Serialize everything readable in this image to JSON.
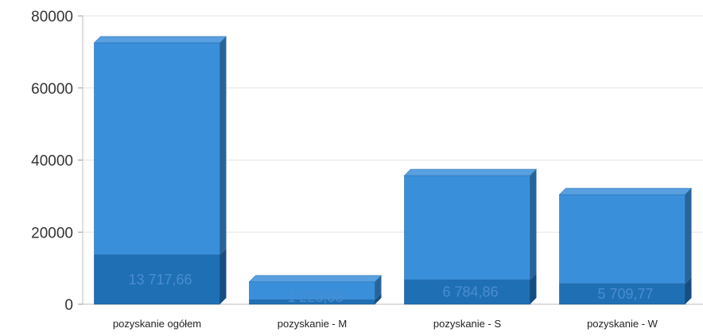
{
  "chart_data": {
    "type": "bar",
    "stacked": true,
    "three_d": true,
    "categories": [
      "pozyskanie ogółem",
      "pozyskanie - M",
      "pozyskanie - S",
      "pozyskanie - W"
    ],
    "series": [
      {
        "values": [
          13717.66,
          1223.03,
          6784.86,
          5709.77
        ],
        "labels": [
          "13 717,66",
          "1 223,03",
          "6 784,86",
          "5 709,77"
        ],
        "color": "#1f6fb5"
      },
      {
        "values": [
          58800,
          5000,
          28900,
          24700
        ],
        "color": "#3a8fdb"
      }
    ],
    "y_ticks": [
      "0",
      "20000",
      "40000",
      "60000",
      "80000"
    ],
    "ylim": [
      0,
      80000
    ],
    "grid": true,
    "legend": "none"
  }
}
